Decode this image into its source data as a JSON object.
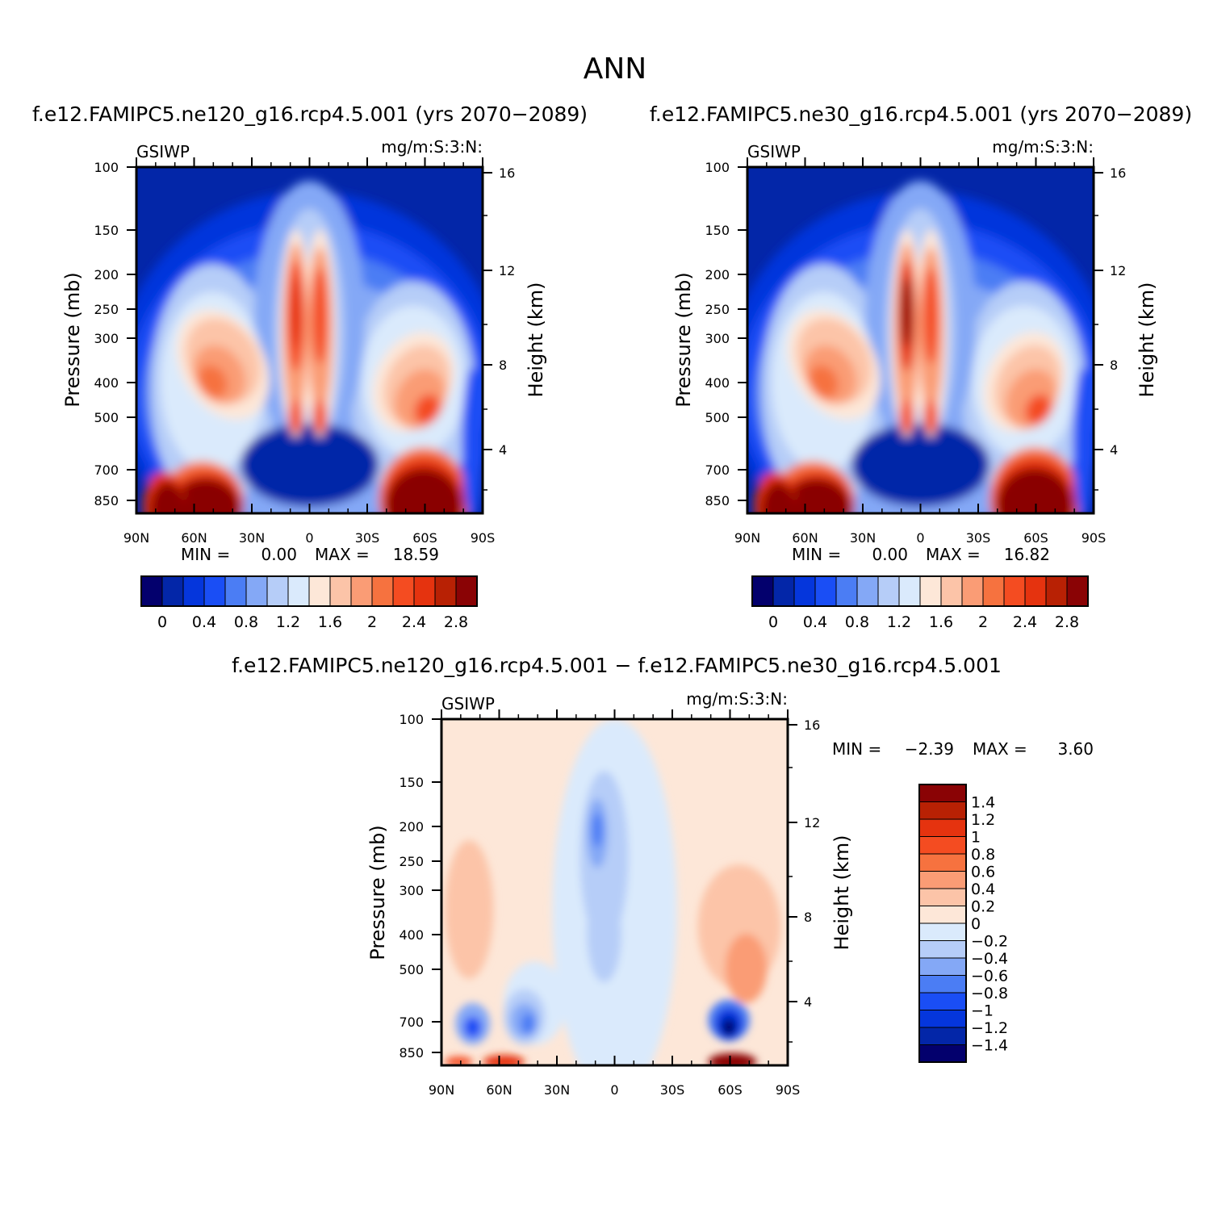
{
  "page_title": "ANN",
  "chart_data": [
    {
      "type": "heatmap",
      "id": "p1",
      "title": "f.e12.FAMIPC5.ne120_g16.rcp4.5.001 (yrs 2070−2089)",
      "variable": "GSIWP",
      "units": "mg/m:S:3:N:",
      "xlabel": "",
      "ylabel": "Pressure (mb)",
      "y2label": "Height (km)",
      "x_ticks": [
        "90N",
        "60N",
        "30N",
        "0",
        "30S",
        "60S",
        "90S"
      ],
      "y_ticks": [
        "100",
        "150",
        "200",
        "250",
        "300",
        "400",
        "500",
        "700",
        "850"
      ],
      "y2_ticks": [
        "16",
        "12",
        "8",
        "4"
      ],
      "min_label": "MIN =",
      "min_value": "0.00",
      "max_label": "MAX =",
      "max_value": "18.59",
      "colorbar_labels": [
        "0",
        "0.4",
        "0.8",
        "1.2",
        "1.6",
        "2",
        "2.4",
        "2.8"
      ],
      "colorbar_colors": [
        "#03006d",
        "#0326a8",
        "#0536dc",
        "#1a4ef5",
        "#4b7df4",
        "#84a8f6",
        "#b6cdf8",
        "#daeafc",
        "#fde7d8",
        "#fcc4a8",
        "#fa9c75",
        "#f6723f",
        "#f44c21",
        "#e5330f",
        "#b82104",
        "#8a0305"
      ],
      "features": [
        {
          "x": 0,
          "y": 0,
          "sx": 0.14,
          "sy": 0.08,
          "v": 12
        },
        {
          "x": 30,
          "y": 36,
          "sx": 8,
          "sy": 4,
          "v": 6
        },
        {
          "x": 58,
          "y": 7,
          "sx": 5,
          "sy": 8,
          "v": 5
        },
        {
          "x": 66,
          "y": 9.5,
          "sx": 8,
          "sy": 4,
          "v": 6
        },
        {
          "x": 72,
          "y": 7,
          "sx": 12,
          "sy": 6,
          "v": 3.5
        },
        {
          "x": 98,
          "y": 14,
          "sx": 4,
          "sy": 4,
          "v": 2
        },
        {
          "x": 98,
          "y": 8.5,
          "sx": 4,
          "sy": 3,
          "v": 3
        },
        {
          "x": 90,
          "y": 11,
          "sx": 6,
          "sy": 2,
          "v": 2.5
        },
        {
          "x": 83,
          "y": 10.5,
          "sx": 2.5,
          "sy": 2,
          "v": 3.5
        },
        {
          "x": 108,
          "y": 14.5,
          "sx": 6,
          "sy": 3,
          "v": 3.5
        },
        {
          "x": 120,
          "y": 1.0,
          "sx": 10,
          "sy": 3,
          "v": 12
        },
        {
          "x": 113,
          "y": 15,
          "sx": 10,
          "sy": 3,
          "v": 3
        },
        {
          "x": 150,
          "y": 36,
          "sx": 10,
          "sy": 6,
          "v": 3
        },
        {
          "x": 170,
          "y": 0.6,
          "sx": 1.0,
          "sy": 0.3,
          "v": 1.5
        },
        {
          "x": 30,
          "y": 36,
          "sx": 8,
          "sy": 4,
          "v": 1
        }
      ]
    },
    {
      "type": "heatmap",
      "id": "p2",
      "title": "f.e12.FAMIPC5.ne30_g16.rcp4.5.001 (yrs 2070−2089)",
      "variable": "GSIWP",
      "units": "mg/m:S:3:N:",
      "xlabel": "",
      "ylabel": "Pressure (mb)",
      "y2label": "Height (km)",
      "x_ticks": [
        "90N",
        "60N",
        "30N",
        "0",
        "30S",
        "60S",
        "90S"
      ],
      "y_ticks": [
        "100",
        "150",
        "200",
        "250",
        "300",
        "400",
        "500",
        "700",
        "850"
      ],
      "y2_ticks": [
        "16",
        "12",
        "8",
        "4"
      ],
      "min_label": "MIN =",
      "min_value": "0.00",
      "max_label": "MAX =",
      "max_value": "16.82",
      "colorbar_labels": [
        "0",
        "0.4",
        "0.8",
        "1.2",
        "1.6",
        "2",
        "2.4",
        "2.8"
      ],
      "colorbar_colors": [
        "#03006d",
        "#0326a8",
        "#0536dc",
        "#1a4ef5",
        "#4b7df4",
        "#84a8f6",
        "#b6cdf8",
        "#daeafc",
        "#fde7d8",
        "#fcc4a8",
        "#fa9c75",
        "#f6723f",
        "#f44c21",
        "#e5330f",
        "#b82104",
        "#8a0305"
      ]
    },
    {
      "type": "heatmap",
      "id": "p3",
      "title": "f.e12.FAMIPC5.ne120_g16.rcp4.5.001 − f.e12.FAMIPC5.ne30_g16.rcp4.5.001",
      "variable": "GSIWP",
      "units": "mg/m:S:3:N:",
      "xlabel": "",
      "ylabel": "Pressure (mb)",
      "y2label": "Height (km)",
      "x_ticks": [
        "90N",
        "60N",
        "30N",
        "0",
        "30S",
        "60S",
        "90S"
      ],
      "y_ticks": [
        "100",
        "150",
        "200",
        "250",
        "300",
        "400",
        "500",
        "700",
        "850"
      ],
      "y2_ticks": [
        "16",
        "12",
        "8",
        "4"
      ],
      "min_label": "MIN =",
      "min_value": "−2.39",
      "max_label": "MAX =",
      "max_value": "3.60",
      "colorbar_labels": [
        "1.4",
        "1.2",
        "1",
        "0.8",
        "0.6",
        "0.4",
        "0.2",
        "0",
        "−0.2",
        "−0.4",
        "−0.6",
        "−0.8",
        "−1",
        "−1.2",
        "−1.4"
      ],
      "colorbar_colors": [
        "#8a0305",
        "#b82104",
        "#e5330f",
        "#f44c21",
        "#f6723f",
        "#fa9c75",
        "#fcc4a8",
        "#fde7d8",
        "#daeafc",
        "#b6cdf8",
        "#84a8f6",
        "#4b7df4",
        "#1a4ef5",
        "#0536dc",
        "#0326a8",
        "#03006d"
      ]
    }
  ]
}
